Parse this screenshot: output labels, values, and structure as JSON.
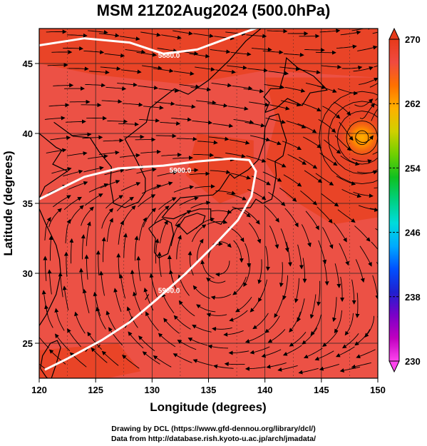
{
  "title": "MSM 21Z02Aug2024 (500.0hPa)",
  "credits": {
    "line1": "Drawing by DCL (https://www.gfd-dennou.org/library/dcl/)",
    "line2": "Data from http://database.rish.kyoto-u.ac.jp/arch/jmadata/"
  },
  "map": {
    "lon_range": [
      120,
      150
    ],
    "lat_range": [
      22.5,
      47.5
    ],
    "x_axis_title": "Longitude (degrees)",
    "y_axis_title": "Latitude  (degrees)",
    "x_ticks": [
      120,
      125,
      130,
      135,
      140,
      145,
      150
    ],
    "y_ticks": [
      25,
      30,
      35,
      40,
      45
    ],
    "grid": true,
    "field_color": "#ec5145",
    "warm_color": "#e8401e",
    "contours": [
      {
        "label": "5880.0",
        "color": "#ffffff",
        "points": [
          [
            120,
            46.3
          ],
          [
            124,
            46.8
          ],
          [
            128,
            46.5
          ],
          [
            131,
            45.7
          ],
          [
            134,
            46.0
          ],
          [
            137,
            46.9
          ],
          [
            139.5,
            47.6
          ]
        ]
      },
      {
        "label": "5900.0",
        "color": "#ffffff",
        "points": [
          [
            120,
            35.3
          ],
          [
            122,
            36.1
          ],
          [
            124,
            36.9
          ],
          [
            127,
            37.5
          ],
          [
            131,
            37.7
          ],
          [
            134,
            38.0
          ],
          [
            137,
            38.2
          ],
          [
            138.6,
            38.1
          ],
          [
            139.2,
            37.3
          ],
          [
            138.8,
            35.5
          ],
          [
            137.6,
            33.8
          ],
          [
            135.5,
            32.0
          ],
          [
            133,
            30.0
          ],
          [
            130.5,
            28.2
          ],
          [
            128,
            26.5
          ],
          [
            125.5,
            25.2
          ],
          [
            122.5,
            23.9
          ],
          [
            120.5,
            23.1
          ]
        ]
      }
    ],
    "contour_label_positions": [
      {
        "label": "5880.0",
        "at": [
          131.5,
          45.4
        ]
      },
      {
        "label": "5900.0",
        "at": [
          132.5,
          37.2
        ]
      },
      {
        "label": "5900.0",
        "at": [
          131.5,
          28.6
        ]
      }
    ],
    "cyclone_center": [
      148.6,
      39.7
    ]
  },
  "colorbar": {
    "min": 230,
    "max": 270,
    "tick_labels": [
      "270",
      "262",
      "254",
      "246",
      "238",
      "230"
    ],
    "colors": [
      "#ff44ee",
      "#c000c0",
      "#7a00c8",
      "#2020d0",
      "#0050ff",
      "#00aaff",
      "#00dcdc",
      "#00d080",
      "#10c020",
      "#70d000",
      "#d0d000",
      "#ffb000",
      "#ff7000",
      "#f04a40",
      "#e83a1a"
    ]
  }
}
